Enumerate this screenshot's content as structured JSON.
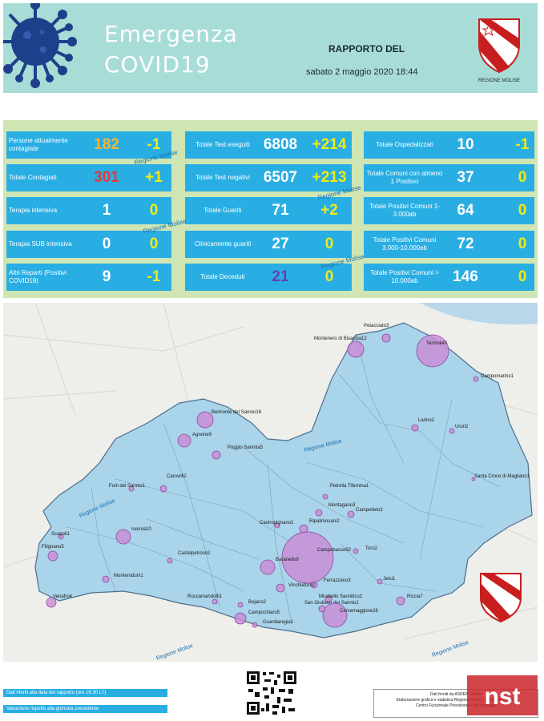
{
  "header": {
    "title_line1": "Emergenza",
    "title_line2": "COVID19",
    "report_label": "RAPPORTO DEL",
    "report_date": "sabato 2 maggio 2020 18:44",
    "logo_text": "REGIONE MOLISE"
  },
  "stats": {
    "col1": [
      {
        "label": "Persone attualmente contagiate",
        "value": "182",
        "delta": "-1",
        "value_color": "#f5b333"
      },
      {
        "label": "Totale Contagiati",
        "value": "301",
        "delta": "+1",
        "value_color": "#e23a3a"
      },
      {
        "label": "Terapia  intensiva",
        "value": "1",
        "delta": "0",
        "value_color": "#ffffff"
      },
      {
        "label": "Terapia SUB intensiva",
        "value": "0",
        "delta": "0",
        "value_color": "#ffffff"
      },
      {
        "label": "Altri Reparti (Positivi COVID19)",
        "value": "9",
        "delta": "-1",
        "value_color": "#ffffff"
      }
    ],
    "col2": [
      {
        "label": "Totale Test eseguiti",
        "value": "6808",
        "delta": "+214",
        "value_color": "#ffffff"
      },
      {
        "label": "Totale Test negativi",
        "value": "6507",
        "delta": "+213",
        "value_color": "#ffffff"
      },
      {
        "label": "Totale Guariti",
        "value": "71",
        "delta": "+2",
        "value_color": "#ffffff"
      },
      {
        "label": "Clinicamente guariti",
        "value": "27",
        "delta": "0",
        "value_color": "#ffffff"
      },
      {
        "label": "Totale Deceduti",
        "value": "21",
        "delta": "0",
        "value_color": "#6a3cb0"
      }
    ],
    "col3": [
      {
        "label": "Totale Ospedalizzati",
        "value": "10",
        "delta": "-1",
        "value_color": "#ffffff"
      },
      {
        "label": "Totale Comuni con almeno 1 Positivo",
        "value": "37",
        "delta": "0",
        "value_color": "#ffffff"
      },
      {
        "label": "Totale Positivi Comuni 1-3.000ab",
        "value": "64",
        "delta": "0",
        "value_color": "#ffffff"
      },
      {
        "label": "Totale Positivi Comuni 3.000-10.000ab",
        "value": "72",
        "delta": "0",
        "value_color": "#ffffff"
      },
      {
        "label": "Totale Positivi Comuni > 10.000ab",
        "value": "146",
        "delta": "0",
        "value_color": "#ffffff"
      }
    ],
    "watermark": "Regione Molise"
  },
  "map": {
    "watermark": "Regione Molise",
    "towns": [
      {
        "name": "Petacciato3"
      },
      {
        "name": "Termoli40"
      },
      {
        "name": "Montenero di Bisaccia12"
      },
      {
        "name": "Campomarino1"
      },
      {
        "name": "Belmonte del Sannio16"
      },
      {
        "name": "Agnone9"
      },
      {
        "name": "Poggio Sannita5"
      },
      {
        "name": "Larino2"
      },
      {
        "name": "Ururi2"
      },
      {
        "name": "Santa Croce di Magliano1"
      },
      {
        "name": "Forli del Sannio1"
      },
      {
        "name": "Carovilli2"
      },
      {
        "name": "Petrella Tifernina1"
      },
      {
        "name": "Montagano3"
      },
      {
        "name": "Campolieto3"
      },
      {
        "name": "Castropignano1"
      },
      {
        "name": "Ripalimosani2"
      },
      {
        "name": "Scapoli1"
      },
      {
        "name": "Filignano5"
      },
      {
        "name": "Isernia10"
      },
      {
        "name": "Castelpetroso2"
      },
      {
        "name": "Campobasso92"
      },
      {
        "name": "Toro2"
      },
      {
        "name": "Monteroduni1"
      },
      {
        "name": "Baranello9"
      },
      {
        "name": "Ferrazzano3"
      },
      {
        "name": "Jelsi1"
      },
      {
        "name": "Roccamandolfi1"
      },
      {
        "name": "Vinchiaturo2"
      },
      {
        "name": "Mirabello Sannitico2"
      },
      {
        "name": "Riccia7"
      },
      {
        "name": "Venafro4"
      },
      {
        "name": "Bojano2"
      },
      {
        "name": "San Giuliano del Sannio1"
      },
      {
        "name": "Campochiaro5"
      },
      {
        "name": "Cercemaggiore28"
      },
      {
        "name": "Guardiaregia1"
      }
    ]
  },
  "footer": {
    "legend1": "Dati riferiti alla data del rapporto  (ore 16.30 LT)",
    "legend2": "Variazione rispetto alla giornata precedente",
    "credits_line1": "Dati forniti da ASREM Molise",
    "credits_line2": "Elaborazione grafica e statistica Regione Molise - Protezione Civile",
    "credits_line3": "Centro Funzionale Previsione e Monitoraggio",
    "nst": "nst"
  },
  "colors": {
    "header_bg": "#a7ddd6",
    "stats_bg": "#cfe5b3",
    "cell_bg": "#29aee3",
    "delta": "#f2ea14",
    "region_fill": "#a9d4ea",
    "bubble": "#c98ad6"
  }
}
